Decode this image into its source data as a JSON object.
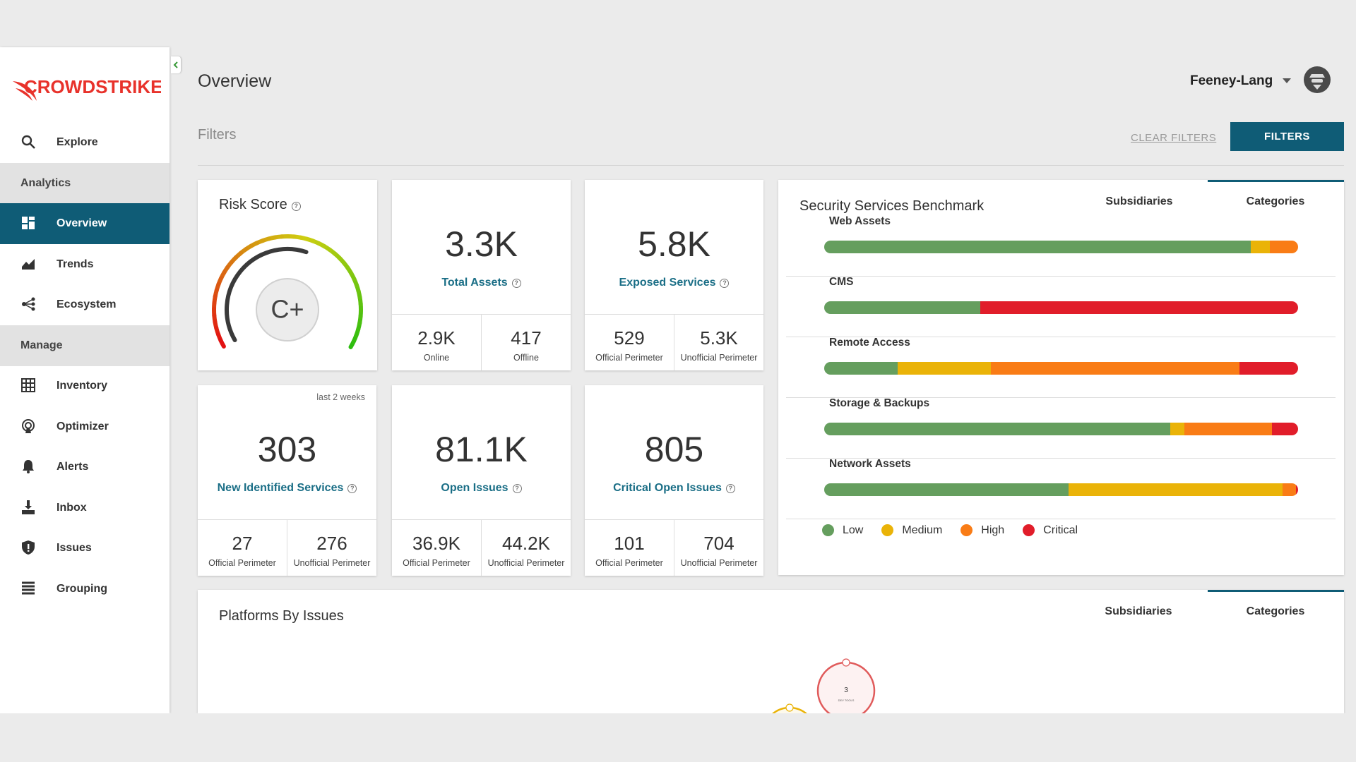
{
  "header": {
    "logo": "CROWDSTRIKE",
    "title": "Overview",
    "user": "Feeney-Lang"
  },
  "sidebar": {
    "explore": "Explore",
    "active": "Overview",
    "sections": [
      {
        "title": "Analytics",
        "items": [
          "Overview",
          "Trends",
          "Ecosystem"
        ]
      },
      {
        "title": "Manage",
        "items": [
          "Inventory",
          "Optimizer",
          "Alerts",
          "Inbox",
          "Issues",
          "Grouping"
        ]
      }
    ]
  },
  "filters": {
    "label": "Filters",
    "clear": "CLEAR FILTERS",
    "button": "FILTERS"
  },
  "risk_score": {
    "title": "Risk Score",
    "grade": "C+"
  },
  "cards": [
    {
      "value": "3.3K",
      "label": "Total Assets",
      "sub": [
        {
          "value": "2.9K",
          "label": "Online"
        },
        {
          "value": "417",
          "label": "Offline"
        }
      ]
    },
    {
      "value": "5.8K",
      "label": "Exposed Services",
      "sub": [
        {
          "value": "529",
          "label": "Official Perimeter"
        },
        {
          "value": "5.3K",
          "label": "Unofficial Perimeter"
        }
      ]
    },
    {
      "note": "last 2 weeks",
      "value": "303",
      "label": "New Identified Services",
      "sub": [
        {
          "value": "27",
          "label": "Official Perimeter"
        },
        {
          "value": "276",
          "label": "Unofficial Perimeter"
        }
      ]
    },
    {
      "value": "81.1K",
      "label": "Open Issues",
      "sub": [
        {
          "value": "36.9K",
          "label": "Official Perimeter"
        },
        {
          "value": "44.2K",
          "label": "Unofficial Perimeter"
        }
      ]
    },
    {
      "value": "805",
      "label": "Critical Open Issues",
      "sub": [
        {
          "value": "101",
          "label": "Official Perimeter"
        },
        {
          "value": "704",
          "label": "Unofficial Perimeter"
        }
      ]
    }
  ],
  "benchmark": {
    "title": "Security Services Benchmark",
    "tabs": [
      "Subsidiaries",
      "Categories"
    ],
    "active_tab": 1,
    "legend": [
      {
        "name": "Low",
        "color": "#659e5e"
      },
      {
        "name": "Medium",
        "color": "#eab308"
      },
      {
        "name": "High",
        "color": "#f97c16"
      },
      {
        "name": "Critical",
        "color": "#e11d2a"
      }
    ],
    "rows": [
      {
        "name": "Web Assets",
        "values": [
          90,
          4,
          6,
          0
        ]
      },
      {
        "name": "CMS",
        "values": [
          33,
          0,
          0,
          67
        ]
      },
      {
        "name": "Remote Access",
        "values": [
          15.5,
          19.7,
          52.4,
          12.4
        ]
      },
      {
        "name": "Storage & Backups",
        "values": [
          73,
          3,
          18.5,
          5.5
        ]
      },
      {
        "name": "Network Assets",
        "values": [
          51.6,
          45.1,
          2.9,
          0.4
        ]
      }
    ]
  },
  "platforms": {
    "title": "Platforms By Issues",
    "tabs": [
      "Subsidiaries",
      "Categories"
    ],
    "active_tab": 1,
    "bubbles": [
      {
        "value": 3,
        "label": "DEV TOOLS",
        "color": "#e05a5a"
      },
      {
        "color": "#eab308"
      }
    ]
  }
}
